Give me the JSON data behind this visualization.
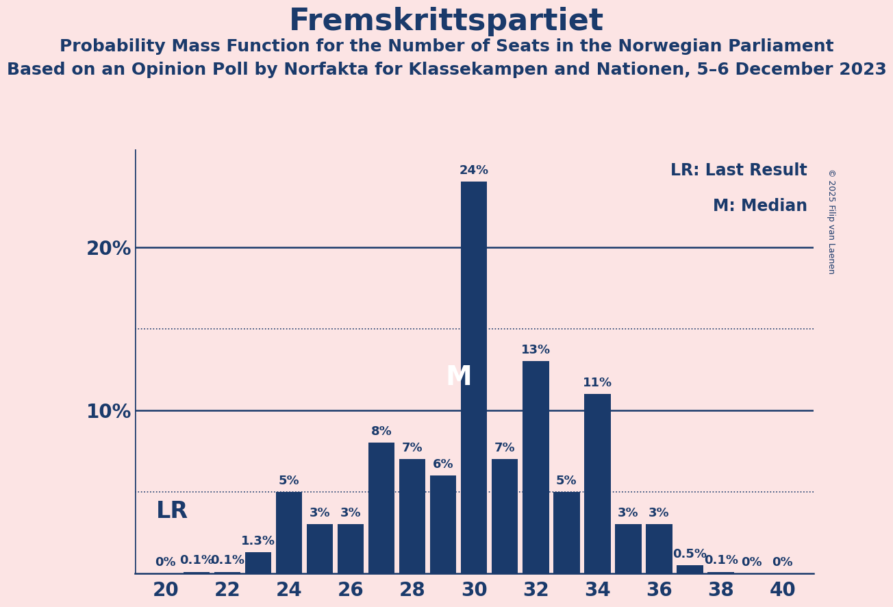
{
  "title": "Fremskrittspartiet",
  "subtitle1": "Probability Mass Function for the Number of Seats in the Norwegian Parliament",
  "subtitle2": "Based on an Opinion Poll by Norfakta for Klassekampen and Nationen, 5–6 December 2023",
  "copyright": "© 2025 Filip van Laenen",
  "legend_lr": "LR: Last Result",
  "legend_m": "M: Median",
  "seats": [
    20,
    21,
    22,
    23,
    24,
    25,
    26,
    27,
    28,
    29,
    30,
    31,
    32,
    33,
    34,
    35,
    36,
    37,
    38,
    39,
    40
  ],
  "probabilities": [
    0.0,
    0.1,
    0.1,
    1.3,
    5.0,
    3.0,
    3.0,
    8.0,
    7.0,
    6.0,
    24.0,
    7.0,
    13.0,
    5.0,
    11.0,
    3.0,
    3.0,
    0.5,
    0.1,
    0.0,
    0.0
  ],
  "bar_labels": [
    "0%",
    "0.1%",
    "0.1%",
    "1.3%",
    "5%",
    "3%",
    "3%",
    "8%",
    "7%",
    "6%",
    "24%",
    "7%",
    "13%",
    "5%",
    "11%",
    "3%",
    "3%",
    "0.5%",
    "0.1%",
    "0%",
    "0%"
  ],
  "bar_color": "#1a3a6b",
  "background_color": "#fce4e4",
  "text_color": "#1a3a6b",
  "lr_seat": 21,
  "median_seat": 30,
  "xlim": [
    19.0,
    41.0
  ],
  "ylim": [
    0,
    26
  ],
  "xticks": [
    20,
    22,
    24,
    26,
    28,
    30,
    32,
    34,
    36,
    38,
    40
  ],
  "dotted_lines": [
    5.0,
    15.0
  ],
  "solid_lines": [
    10.0,
    20.0
  ],
  "title_fontsize": 32,
  "subtitle1_fontsize": 18,
  "subtitle2_fontsize": 18,
  "axis_tick_fontsize": 20,
  "bar_label_fontsize": 13,
  "lr_label_fontsize": 24,
  "legend_fontsize": 17,
  "copyright_fontsize": 9,
  "median_label_fontsize": 28
}
